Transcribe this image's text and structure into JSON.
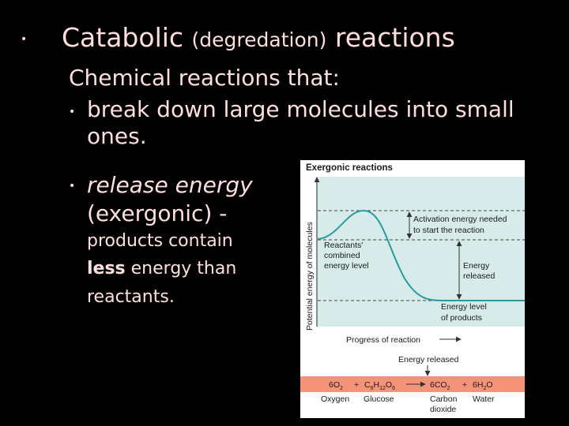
{
  "slide": {
    "title_a": "Catabolic",
    "title_paren": "(degredation)",
    "title_b": "reactions",
    "intro": "Chemical reactions that:",
    "bullet1_line1": "break down large molecules into small",
    "bullet1_line2": "ones.",
    "bullet2_line1": "release energy",
    "bullet2_line2": "(exergonic) -",
    "bullet2_line3": "products contain",
    "bullet2_less": "less",
    "bullet2_line4_rest": " energy than",
    "bullet2_line5": "reactants.",
    "bullet_glyph": "•"
  },
  "figure": {
    "title": "Exergonic reactions",
    "y_axis_label": "Potential energy of molecules",
    "x_axis_label": "Progress of reaction",
    "activation_label_1": "Activation energy needed",
    "activation_label_2": "to start the reaction",
    "reactants_label_1": "Reactants'",
    "reactants_label_2": "combined",
    "reactants_label_3": "energy level",
    "energy_released_1": "Energy",
    "energy_released_2": "released",
    "products_label_1": "Energy level",
    "products_label_2": "of products",
    "bottom_arrow_label": "Energy released",
    "equation": {
      "o2_coef": "6O",
      "o2_sub": "2",
      "plus1": "+",
      "glucose_c": "C",
      "glucose_c_sub": "6",
      "glucose_h": "H",
      "glucose_h_sub": "12",
      "glucose_o": "O",
      "glucose_o_sub": "6",
      "co2_coef": "6CO",
      "co2_sub": "2",
      "plus2": "+",
      "h2o_h": "6H",
      "h2o_sub": "2",
      "h2o_o": "O"
    },
    "names": {
      "oxygen": "Oxygen",
      "glucose": "Glucose",
      "carbon_1": "Carbon",
      "carbon_2": "dioxide",
      "water": "Water"
    },
    "colors": {
      "plot_bg": "#d7ebea",
      "curve": "#2a9a9e",
      "equation_band": "#f4937a"
    }
  }
}
